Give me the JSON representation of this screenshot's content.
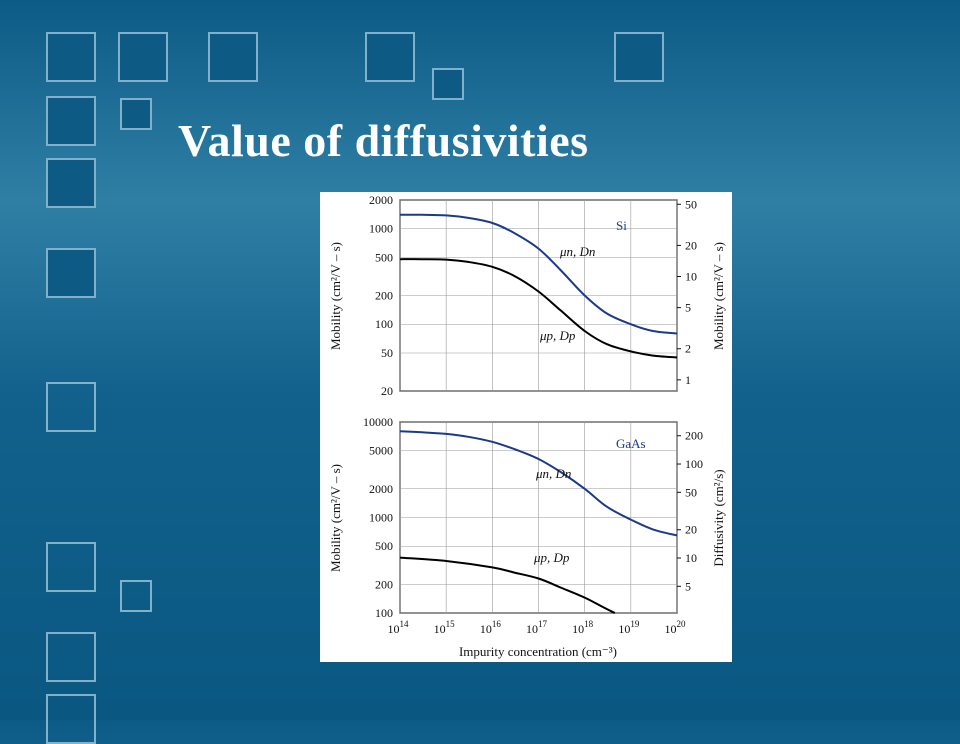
{
  "slide": {
    "title": "Value of diffusivities",
    "colors": {
      "background": "#1e6f99",
      "title": "#ffffff",
      "electron_curve": "#1c3a8a",
      "hole_curve": "#000000"
    }
  },
  "chart_data": [
    {
      "type": "line",
      "material_label": "Si",
      "x_scale": "log",
      "xlim": [
        100000000000000.0,
        1e+20
      ],
      "y_scale": "log",
      "ylim": [
        20,
        2000
      ],
      "left_ylabel": "Mobility (cm²/V – s)",
      "left_yticks": [
        {
          "v": 2000,
          "t": "2000"
        },
        {
          "v": 1000,
          "t": "1000"
        },
        {
          "v": 500,
          "t": "500"
        },
        {
          "v": 200,
          "t": "200"
        },
        {
          "v": 100,
          "t": "100"
        },
        {
          "v": 50,
          "t": "50"
        },
        {
          "v": 20,
          "t": "20"
        }
      ],
      "right_ylabel": "Mobility (cm²/V – s)",
      "right_yticks": [
        {
          "v": 50,
          "t": "50"
        },
        {
          "v": 20,
          "t": "20"
        },
        {
          "v": 10,
          "t": "10"
        },
        {
          "v": 5,
          "t": "5"
        },
        {
          "v": 2,
          "t": "2"
        },
        {
          "v": 1,
          "t": "1"
        }
      ],
      "right_ylim": [
        0.78,
        55
      ],
      "series": [
        {
          "name": "μn, Dn",
          "color": "#1c3a8a",
          "x": [
            100000000000000.0,
            300000000000000.0,
            1000000000000000.0,
            3000000000000000.0,
            1e+16,
            3e+16,
            1e+17,
            3e+17,
            1e+18,
            3e+18,
            1e+19,
            3e+19,
            1e+20
          ],
          "y": [
            1400,
            1400,
            1380,
            1300,
            1150,
            900,
            620,
            370,
            200,
            130,
            100,
            85,
            80
          ]
        },
        {
          "name": "μp, Dp",
          "color": "#000000",
          "x": [
            100000000000000.0,
            300000000000000.0,
            1000000000000000.0,
            3000000000000000.0,
            1e+16,
            3e+16,
            1e+17,
            3e+17,
            1e+18,
            3e+18,
            1e+19,
            3e+19,
            1e+20
          ],
          "y": [
            480,
            480,
            475,
            450,
            400,
            320,
            220,
            140,
            85,
            62,
            52,
            47,
            45
          ]
        }
      ]
    },
    {
      "type": "line",
      "material_label": "GaAs",
      "x_scale": "log",
      "xlim": [
        100000000000000.0,
        1e+20
      ],
      "y_scale": "log",
      "ylim": [
        100,
        10000
      ],
      "left_ylabel": "Mobility (cm²/V – s)",
      "left_yticks": [
        {
          "v": 10000,
          "t": "10000"
        },
        {
          "v": 5000,
          "t": "5000"
        },
        {
          "v": 2000,
          "t": "2000"
        },
        {
          "v": 1000,
          "t": "1000"
        },
        {
          "v": 500,
          "t": "500"
        },
        {
          "v": 200,
          "t": "200"
        },
        {
          "v": 100,
          "t": "100"
        }
      ],
      "right_ylabel": "Diffusivity (cm²/s)",
      "right_yticks": [
        {
          "v": 200,
          "t": "200"
        },
        {
          "v": 100,
          "t": "100"
        },
        {
          "v": 50,
          "t": "50"
        },
        {
          "v": 20,
          "t": "20"
        },
        {
          "v": 10,
          "t": "10"
        },
        {
          "v": 5,
          "t": "5"
        }
      ],
      "right_ylim": [
        2.6,
        280
      ],
      "xlabel": "Impurity concentration (cm⁻³)",
      "xticks": [
        {
          "v": 100000000000000.0,
          "b": "10",
          "e": "14"
        },
        {
          "v": 1000000000000000.0,
          "b": "10",
          "e": "15"
        },
        {
          "v": 1e+16,
          "b": "10",
          "e": "16"
        },
        {
          "v": 1e+17,
          "b": "10",
          "e": "17"
        },
        {
          "v": 1e+18,
          "b": "10",
          "e": "18"
        },
        {
          "v": 1e+19,
          "b": "10",
          "e": "19"
        },
        {
          "v": 1e+20,
          "b": "10",
          "e": "20"
        }
      ],
      "series": [
        {
          "name": "μn, Dn",
          "color": "#1c3a8a",
          "x": [
            100000000000000.0,
            300000000000000.0,
            1000000000000000.0,
            3000000000000000.0,
            1e+16,
            3e+16,
            1e+17,
            3e+17,
            1e+18,
            3e+18,
            1e+19,
            3e+19,
            1e+20
          ],
          "y": [
            8000,
            7800,
            7500,
            7000,
            6200,
            5200,
            4100,
            3000,
            2000,
            1300,
            950,
            750,
            650
          ]
        },
        {
          "name": "μp, Dp",
          "color": "#000000",
          "x": [
            100000000000000.0,
            1000000000000000.0,
            1e+16,
            3e+16,
            1e+17,
            3e+17,
            1e+18,
            2e+18,
            3e+18,
            4.5e+18
          ],
          "y": [
            380,
            350,
            300,
            265,
            230,
            185,
            145,
            122,
            110,
            100
          ]
        }
      ]
    }
  ]
}
